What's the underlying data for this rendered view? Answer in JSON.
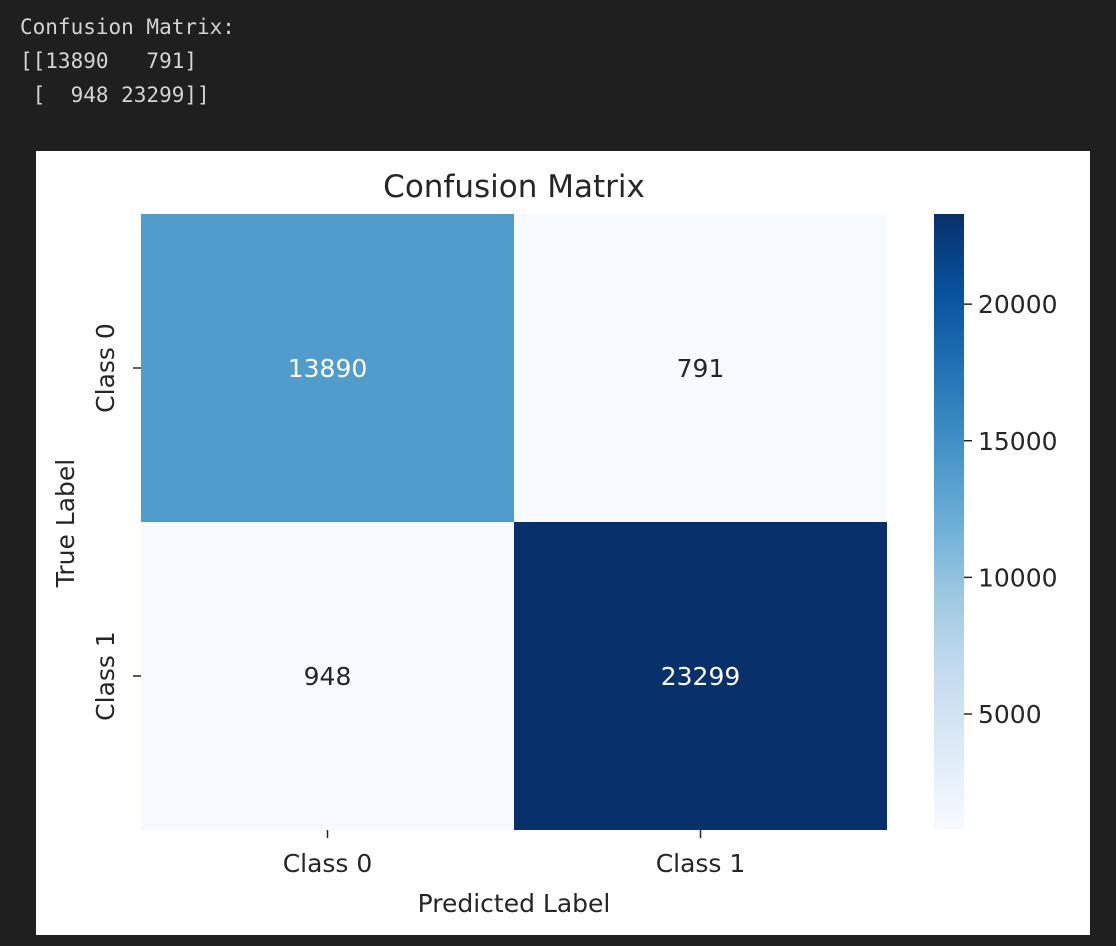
{
  "console": {
    "lines": [
      "Confusion Matrix:",
      "[[13890   791]",
      " [  948 23299]]"
    ]
  },
  "chart_data": {
    "type": "heatmap",
    "title": "Confusion Matrix",
    "xlabel": "Predicted Label",
    "ylabel": "True Label",
    "x_categories": [
      "Class 0",
      "Class 1"
    ],
    "y_categories": [
      "Class 0",
      "Class 1"
    ],
    "values": [
      [
        13890,
        791
      ],
      [
        948,
        23299
      ]
    ],
    "colormap": "Blues",
    "colorbar": {
      "ticks": [
        5000,
        10000,
        15000,
        20000
      ],
      "tick_labels": [
        "5000",
        "10000",
        "15000",
        "20000"
      ],
      "range": [
        791,
        23299
      ]
    },
    "cell_text_colors": {
      "light": "#ffffff",
      "dark": "#262626"
    }
  }
}
